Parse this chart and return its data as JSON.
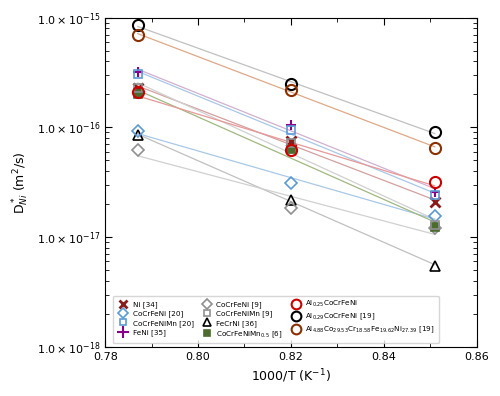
{
  "xlabel": "1000/T (K$^{-1}$)",
  "ylabel": "D$^*_{Ni}$ (m$^2$/s)",
  "xlim": [
    0.78,
    0.86
  ],
  "x_ticks": [
    0.78,
    0.8,
    0.82,
    0.84,
    0.86
  ],
  "series": [
    {
      "label": "Ni [34]",
      "color": "#8B1A1A",
      "marker": "x",
      "mfc": "none",
      "mew": 2.0,
      "ms": 7,
      "linecolor": "#d4a0a0",
      "x": [
        0.787,
        0.82,
        0.851
      ],
      "y": [
        2.3e-16,
        7.5e-17,
        2.1e-17
      ]
    },
    {
      "label": "FeNi [35]",
      "color": "#8B008B",
      "marker": "P",
      "mfc": "#8B008B",
      "mew": 1.5,
      "ms": 7,
      "linecolor": "#d0b0d0",
      "x": [
        0.787,
        0.82,
        0.851
      ],
      "y": [
        3.2e-16,
        1.05e-16,
        2.6e-17
      ]
    },
    {
      "label": "FeCrNi [36]",
      "color": "#000000",
      "marker": "^",
      "mfc": "none",
      "mew": 1.2,
      "ms": 7,
      "linecolor": "#c0c0c0",
      "x": [
        0.787,
        0.82,
        0.851
      ],
      "y": [
        8.5e-17,
        2.2e-17,
        5.5e-18
      ]
    },
    {
      "label": "Al$_{0.29}$CoCrFeNi [19]",
      "color": "#000000",
      "marker": "o",
      "mfc": "none",
      "mew": 1.5,
      "ms": 8,
      "linecolor": "#c0c0c0",
      "x": [
        0.787,
        0.82,
        0.851
      ],
      "y": [
        8.5e-16,
        2.5e-16,
        9e-17
      ]
    },
    {
      "label": "CoCrFeNi [20]",
      "color": "#5B9BD5",
      "marker": "D",
      "mfc": "none",
      "mew": 1.2,
      "ms": 6,
      "linecolor": "#a8c8e8",
      "x": [
        0.787,
        0.82,
        0.851
      ],
      "y": [
        9.3e-17,
        3.1e-17,
        1.55e-17
      ]
    },
    {
      "label": "CoCrFeNi [9]",
      "color": "#909090",
      "marker": "D",
      "mfc": "none",
      "mew": 1.2,
      "ms": 6,
      "linecolor": "#d0d0d0",
      "x": [
        0.787,
        0.82,
        0.851
      ],
      "y": [
        6.2e-17,
        1.85e-17,
        1.2e-17
      ]
    },
    {
      "label": "CoCrFeNiMn$_{0.5}$ [6]",
      "color": "#4B6B2F",
      "marker": "s",
      "mfc": "#4B6B2F",
      "mew": 1.2,
      "ms": 6,
      "linecolor": "#a0b880",
      "x": [
        0.787,
        0.82,
        0.851
      ],
      "y": [
        2e-16,
        6.3e-17,
        1.25e-17
      ]
    },
    {
      "label": "Al$_{4.88}$Co$_{29.53}$Cr$_{18.58}$Fe$_{19.62}$Ni$_{27.39}$ [19]",
      "color": "#8B3000",
      "marker": "o",
      "mfc": "none",
      "mew": 1.5,
      "ms": 8,
      "linecolor": "#e0a888",
      "x": [
        0.787,
        0.82,
        0.851
      ],
      "y": [
        7e-16,
        2.2e-16,
        6.5e-17
      ]
    },
    {
      "label": "CoCrFeNiMn [20]",
      "color": "#5B9BD5",
      "marker": "s",
      "mfc": "none",
      "mew": 1.2,
      "ms": 6,
      "linecolor": "#a8c8e8",
      "x": [
        0.787,
        0.82,
        0.851
      ],
      "y": [
        3.1e-16,
        9.5e-17,
        2.4e-17
      ]
    },
    {
      "label": "CoCrFeNiMn [9]",
      "color": "#909090",
      "marker": "s",
      "mfc": "none",
      "mew": 1.2,
      "ms": 6,
      "linecolor": "#d0d0d0",
      "x": [
        0.787,
        0.82,
        0.851
      ],
      "y": [
        2.3e-16,
        7.2e-17,
        1.3e-17
      ]
    },
    {
      "label": "Al$_{0.25}$CoCrFeNi",
      "color": "#CC0000",
      "marker": "o",
      "mfc": "none",
      "mew": 1.5,
      "ms": 8,
      "linecolor": "#e89898",
      "x": [
        0.787,
        0.82,
        0.851
      ],
      "y": [
        2.1e-16,
        6.2e-17,
        3.2e-17
      ]
    }
  ],
  "legend_order": [
    {
      "label": "Ni [34]",
      "marker": "x",
      "color": "#8B1A1A",
      "mfc": "none",
      "ms": 6,
      "mew": 2.0
    },
    {
      "label": "CoCrFeNi [20]",
      "marker": "D",
      "color": "#5B9BD5",
      "mfc": "none",
      "ms": 5,
      "mew": 1.2
    },
    {
      "label": "CoCrFeNiMn [20]",
      "marker": "s",
      "color": "#5B9BD5",
      "mfc": "none",
      "ms": 5,
      "mew": 1.2
    },
    {
      "label": "FeNi [35]",
      "marker": "+",
      "color": "#8B008B",
      "mfc": "#8B008B",
      "ms": 8,
      "mew": 1.5
    },
    {
      "label": "CoCrFeNi [9]",
      "marker": "D",
      "color": "#909090",
      "mfc": "none",
      "ms": 5,
      "mew": 1.2
    },
    {
      "label": "CoCrFeNiMn [9]",
      "marker": "s",
      "color": "#909090",
      "mfc": "none",
      "ms": 5,
      "mew": 1.2
    },
    {
      "label": "FeCrNi [36]",
      "marker": "^",
      "color": "#000000",
      "mfc": "none",
      "ms": 6,
      "mew": 1.2
    },
    {
      "label": "CoCrFeNiMn$_{0.5}$ [6]",
      "marker": "s",
      "color": "#4B6B2F",
      "mfc": "#4B6B2F",
      "ms": 5,
      "mew": 1.2
    },
    {
      "label": "Al$_{0.25}$CoCrFeNi",
      "marker": "o",
      "color": "#CC0000",
      "mfc": "none",
      "ms": 7,
      "mew": 1.5
    },
    {
      "label": "Al$_{0.29}$CoCrFeNi [19]",
      "marker": "o",
      "color": "#000000",
      "mfc": "none",
      "ms": 7,
      "mew": 1.5
    },
    {
      "label": "Al$_{4.88}$Co$_{29.53}$Cr$_{18.58}$Fe$_{19.62}$Ni$_{27.39}$ [19]",
      "marker": "o",
      "color": "#8B3000",
      "mfc": "none",
      "ms": 7,
      "mew": 1.5
    }
  ]
}
